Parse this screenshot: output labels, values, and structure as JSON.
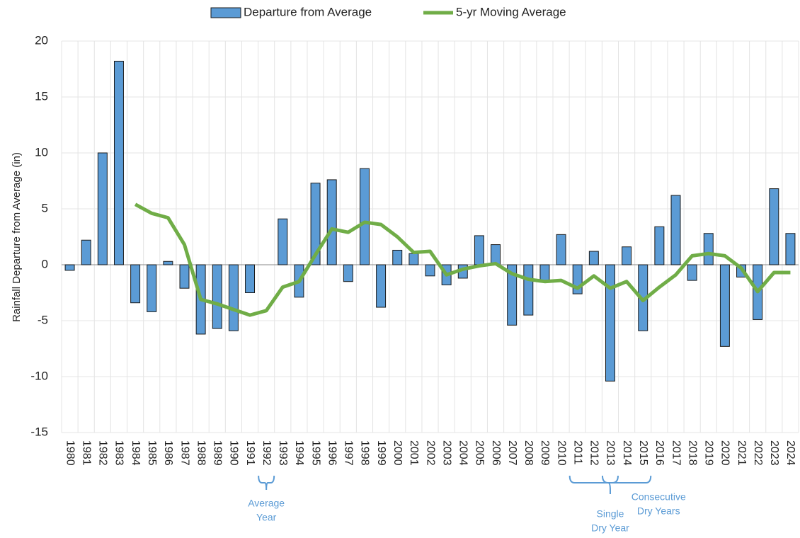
{
  "chart_data": {
    "type": "bar",
    "y_label": "Rainfall Departure from Average (in)",
    "categories": [
      "1980",
      "1981",
      "1982",
      "1983",
      "1984",
      "1985",
      "1986",
      "1987",
      "1988",
      "1989",
      "1990",
      "1991",
      "1992",
      "1993",
      "1994",
      "1995",
      "1996",
      "1997",
      "1998",
      "1999",
      "2000",
      "2001",
      "2002",
      "2003",
      "2004",
      "2005",
      "2006",
      "2007",
      "2008",
      "2009",
      "2010",
      "2011",
      "2012",
      "2013",
      "2014",
      "2015",
      "2016",
      "2017",
      "2018",
      "2019",
      "2020",
      "2021",
      "2022",
      "2023",
      "2024"
    ],
    "series": [
      {
        "name": "Departure from Average",
        "type": "bar",
        "color": "#5b9bd5",
        "values": [
          -0.5,
          2.2,
          10,
          18.2,
          -3.4,
          -4.2,
          0.3,
          -2.1,
          -6.2,
          -5.7,
          -5.9,
          -2.5,
          0,
          4.1,
          -2.9,
          7.3,
          7.6,
          -1.5,
          8.6,
          -3.8,
          1.3,
          1.0,
          -1.0,
          -1.8,
          -1.2,
          2.6,
          1.8,
          -5.4,
          -4.5,
          -1.4,
          2.7,
          -2.6,
          1.2,
          -10.4,
          1.6,
          -5.9,
          3.4,
          6.2,
          -1.4,
          2.8,
          -7.3,
          -1.1,
          -4.9,
          6.8,
          2.8
        ]
      },
      {
        "name": "5-yr Moving Average",
        "type": "line",
        "color": "#70ad47",
        "values": [
          null,
          null,
          null,
          null,
          5.4,
          4.6,
          4.2,
          1.8,
          -3.1,
          -3.5,
          -4.0,
          -4.5,
          -4.1,
          -2.0,
          -1.5,
          0.9,
          3.2,
          2.9,
          3.8,
          3.6,
          2.5,
          1.1,
          1.2,
          -0.9,
          -0.4,
          -0.1,
          0.1,
          -0.8,
          -1.3,
          -1.5,
          -1.4,
          -2.1,
          -1.0,
          -2.1,
          -1.5,
          -3.2,
          -2.0,
          -0.9,
          0.8,
          1.0,
          0.8,
          -0.3,
          -2.4,
          -0.7,
          -0.7
        ]
      }
    ],
    "ylim": [
      -15,
      20
    ],
    "yticks": [
      -15,
      -10,
      -5,
      0,
      5,
      10,
      15,
      20
    ],
    "grid": true,
    "legend": "top",
    "annotations": [
      {
        "lines": [
          "Average",
          "Year"
        ],
        "from": "1992",
        "to": "1992"
      },
      {
        "lines": [
          "Single",
          "Dry Year"
        ],
        "from": "2013",
        "to": "2013"
      },
      {
        "lines": [
          "Consecutive",
          "Dry Years"
        ],
        "from": "2011",
        "to": "2015"
      }
    ]
  }
}
